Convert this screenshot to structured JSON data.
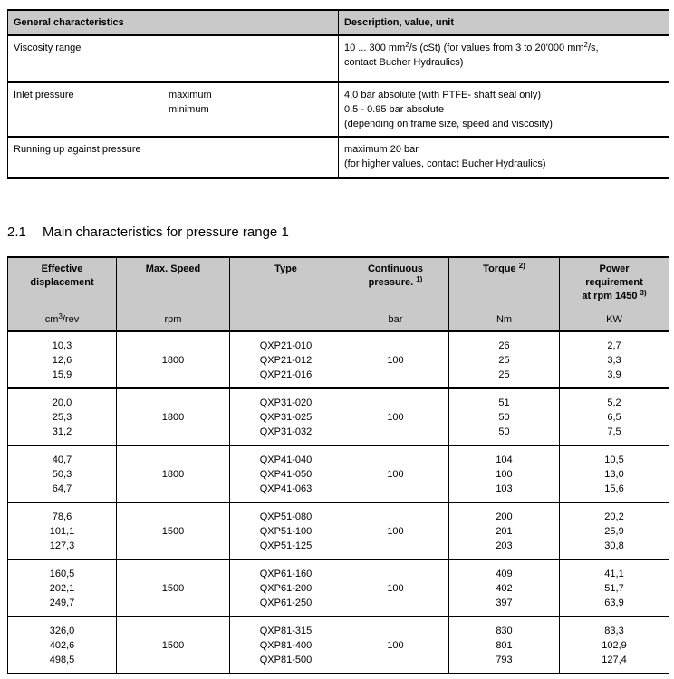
{
  "page": {
    "section_heading": {
      "number": "2.1",
      "title": "Main characteristics for pressure range 1"
    }
  },
  "colors": {
    "header_bg": "#c9c9c9",
    "border": "#000000",
    "text": "#000000"
  },
  "general_table": {
    "columns": [
      "General characteristics",
      "Description, value, unit"
    ],
    "rows": [
      {
        "label": "Viscosity range",
        "sub_labels": [],
        "value_lines": [
          [
            {
              "t": "10 ... 300 mm"
            },
            {
              "t": "2",
              "sup": true
            },
            {
              "t": "/s (cSt) (for values from 3 to 20'000 mm"
            },
            {
              "t": "2",
              "sup": true
            },
            {
              "t": "/s,"
            }
          ],
          [
            {
              "t": "contact Bucher Hydraulics)"
            }
          ]
        ]
      },
      {
        "label": "Inlet pressure",
        "sub_labels": [
          "maximum",
          "minimum"
        ],
        "value_lines": [
          [
            {
              "t": "4,0 bar absolute (with PTFE- shaft seal only)"
            }
          ],
          [
            {
              "t": "0.5 - 0.95 bar absolute"
            }
          ],
          [
            {
              "t": "(depending on frame size, speed and viscosity)"
            }
          ]
        ]
      },
      {
        "label": "Running up against pressure",
        "sub_labels": [],
        "value_lines": [
          [
            {
              "t": "maximum 20 bar"
            }
          ],
          [
            {
              "t": "(for higher values, contact Bucher Hydraulics)"
            }
          ]
        ]
      }
    ]
  },
  "main_table": {
    "headers": [
      {
        "key": "effective-displacement",
        "title_lines": [
          [
            {
              "t": "Effective"
            }
          ],
          [
            {
              "t": "displacement"
            }
          ]
        ],
        "unit": [
          {
            "t": "cm"
          },
          {
            "t": "3",
            "sup": true
          },
          {
            "t": "/rev"
          }
        ]
      },
      {
        "key": "max-speed",
        "title_lines": [
          [
            {
              "t": "Max. Speed"
            }
          ]
        ],
        "unit": [
          {
            "t": "rpm"
          }
        ]
      },
      {
        "key": "type",
        "title_lines": [
          [
            {
              "t": "Type"
            }
          ]
        ],
        "unit": []
      },
      {
        "key": "continuous-pressure",
        "title_lines": [
          [
            {
              "t": "Continuous"
            }
          ],
          [
            {
              "t": "pressure. "
            },
            {
              "t": "1)",
              "sup": true
            }
          ]
        ],
        "unit": [
          {
            "t": "bar"
          }
        ]
      },
      {
        "key": "torque",
        "title_lines": [
          [
            {
              "t": "Torque "
            },
            {
              "t": "2)",
              "sup": true
            }
          ]
        ],
        "unit": [
          {
            "t": "Nm"
          }
        ]
      },
      {
        "key": "power-requirement",
        "title_lines": [
          [
            {
              "t": "Power"
            }
          ],
          [
            {
              "t": "requirement"
            }
          ],
          [
            {
              "t": "at rpm 1450 "
            },
            {
              "t": "3)",
              "sup": true
            }
          ]
        ],
        "unit": [
          {
            "t": "KW"
          }
        ]
      }
    ],
    "groups": [
      {
        "displacement": [
          "10,3",
          "12,6",
          "15,9"
        ],
        "max_speed": "1800",
        "types": [
          "QXP21-010",
          "QXP21-012",
          "QXP21-016"
        ],
        "continuous_pressure": "100",
        "torque": [
          "26",
          "25",
          "25"
        ],
        "power": [
          "2,7",
          "3,3",
          "3,9"
        ]
      },
      {
        "displacement": [
          "20,0",
          "25,3",
          "31,2"
        ],
        "max_speed": "1800",
        "types": [
          "QXP31-020",
          "QXP31-025",
          "QXP31-032"
        ],
        "continuous_pressure": "100",
        "torque": [
          "51",
          "50",
          "50"
        ],
        "power": [
          "5,2",
          "6,5",
          "7,5"
        ]
      },
      {
        "displacement": [
          "40,7",
          "50,3",
          "64,7"
        ],
        "max_speed": "1800",
        "types": [
          "QXP41-040",
          "QXP41-050",
          "QXP41-063"
        ],
        "continuous_pressure": "100",
        "torque": [
          "104",
          "100",
          "103"
        ],
        "power": [
          "10,5",
          "13,0",
          "15,6"
        ]
      },
      {
        "displacement": [
          "78,6",
          "101,1",
          "127,3"
        ],
        "max_speed": "1500",
        "types": [
          "QXP51-080",
          "QXP51-100",
          "QXP51-125"
        ],
        "continuous_pressure": "100",
        "torque": [
          "200",
          "201",
          "203"
        ],
        "power": [
          "20,2",
          "25,9",
          "30,8"
        ]
      },
      {
        "displacement": [
          "160,5",
          "202,1",
          "249,7"
        ],
        "max_speed": "1500",
        "types": [
          "QXP61-160",
          "QXP61-200",
          "QXP61-250"
        ],
        "continuous_pressure": "100",
        "torque": [
          "409",
          "402",
          "397"
        ],
        "power": [
          "41,1",
          "51,7",
          "63,9"
        ]
      },
      {
        "displacement": [
          "326,0",
          "402,6",
          "498,5"
        ],
        "max_speed": "1500",
        "types": [
          "QXP81-315",
          "QXP81-400",
          "QXP81-500"
        ],
        "continuous_pressure": "100",
        "torque": [
          "830",
          "801",
          "793"
        ],
        "power": [
          "83,3",
          "102,9",
          "127,4"
        ]
      }
    ]
  }
}
